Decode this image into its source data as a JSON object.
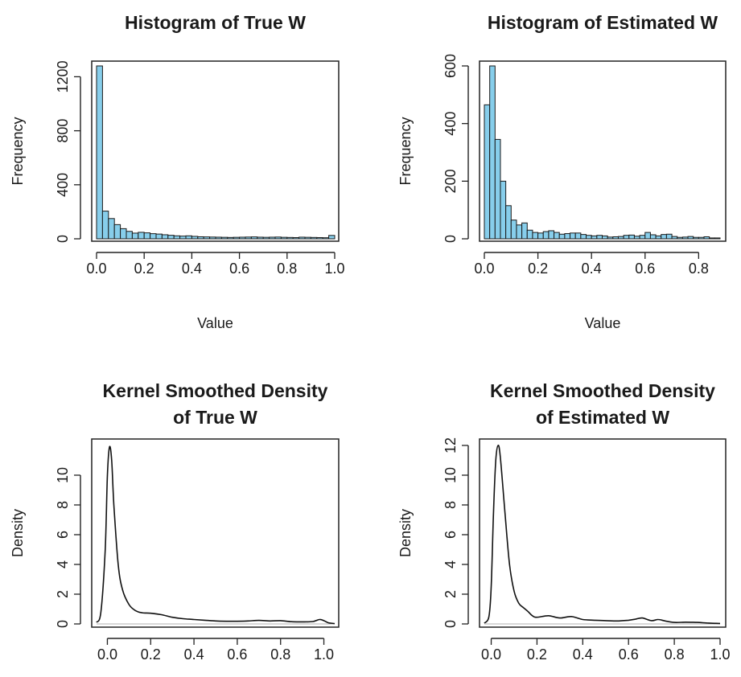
{
  "panels": [
    {
      "title": [
        "Histogram of True W"
      ],
      "xlabel": "Value",
      "ylabel": "Frequency"
    },
    {
      "title": [
        "Histogram of Estimated W"
      ],
      "xlabel": "Value",
      "ylabel": "Frequency"
    },
    {
      "title": [
        "Kernel Smoothed Density",
        "of True W"
      ],
      "xlabel": "",
      "ylabel": "Density"
    },
    {
      "title": [
        "Kernel Smoothed Density",
        "of Estimated W"
      ],
      "xlabel": "",
      "ylabel": "Density"
    }
  ],
  "colors": {
    "bar_fill": "#87CEEB",
    "line": "#111111",
    "frame": "#222222"
  },
  "chart_data": [
    {
      "type": "bar",
      "title": "Histogram of True W",
      "xlabel": "Value",
      "ylabel": "Frequency",
      "bin_width": 0.025,
      "x_start": 0,
      "values": [
        1280,
        205,
        150,
        105,
        75,
        55,
        42,
        48,
        44,
        38,
        35,
        30,
        26,
        22,
        20,
        22,
        18,
        15,
        14,
        13,
        12,
        11,
        10,
        11,
        12,
        13,
        14,
        12,
        11,
        12,
        13,
        11,
        10,
        9,
        12,
        11,
        10,
        9,
        8,
        25
      ],
      "xlim": [
        0,
        1.0
      ],
      "ylim": [
        0,
        1280
      ],
      "xticks": [
        "0.0",
        "0.2",
        "0.4",
        "0.6",
        "0.8",
        "1.0"
      ],
      "xtick_values": [
        0,
        0.2,
        0.4,
        0.6,
        0.8,
        1.0
      ],
      "yticks": [
        "0",
        "400",
        "800",
        "1200"
      ],
      "ytick_values": [
        0,
        400,
        800,
        1200
      ],
      "grid": false,
      "legend": "none"
    },
    {
      "type": "bar",
      "title": "Histogram of Estimated W",
      "xlabel": "Value",
      "ylabel": "Frequency",
      "bin_width": 0.02,
      "x_start": 0,
      "values": [
        465,
        600,
        345,
        200,
        115,
        65,
        48,
        55,
        30,
        22,
        20,
        25,
        28,
        22,
        16,
        18,
        20,
        20,
        15,
        12,
        10,
        12,
        10,
        6,
        7,
        8,
        12,
        13,
        9,
        12,
        22,
        14,
        10,
        15,
        16,
        8,
        5,
        6,
        8,
        5,
        5,
        7,
        3,
        3
      ],
      "xlim": [
        0,
        0.88
      ],
      "ylim": [
        0,
        600
      ],
      "xticks": [
        "0.0",
        "0.2",
        "0.4",
        "0.6",
        "0.8"
      ],
      "xtick_values": [
        0,
        0.2,
        0.4,
        0.6,
        0.8
      ],
      "yticks": [
        "0",
        "200",
        "400",
        "600"
      ],
      "ytick_values": [
        0,
        200,
        400,
        600
      ],
      "grid": false,
      "legend": "none"
    },
    {
      "type": "line",
      "title": "Kernel Smoothed Density of True W",
      "ylabel": "Density",
      "x": [
        -0.05,
        -0.03,
        -0.01,
        0.0,
        0.01,
        0.02,
        0.03,
        0.05,
        0.07,
        0.1,
        0.13,
        0.16,
        0.2,
        0.25,
        0.3,
        0.35,
        0.4,
        0.45,
        0.5,
        0.55,
        0.6,
        0.65,
        0.7,
        0.75,
        0.8,
        0.85,
        0.9,
        0.95,
        0.98,
        1.0,
        1.02,
        1.05
      ],
      "y": [
        0.1,
        0.8,
        5.0,
        10.0,
        11.9,
        11.0,
        8.0,
        4.0,
        2.3,
        1.3,
        0.9,
        0.75,
        0.72,
        0.62,
        0.45,
        0.35,
        0.3,
        0.25,
        0.2,
        0.18,
        0.18,
        0.2,
        0.24,
        0.2,
        0.22,
        0.15,
        0.14,
        0.16,
        0.3,
        0.22,
        0.08,
        0.02
      ],
      "xlim": [
        -0.05,
        1.05
      ],
      "ylim": [
        0,
        12
      ],
      "xticks": [
        "0.0",
        "0.2",
        "0.4",
        "0.6",
        "0.8",
        "1.0"
      ],
      "xtick_values": [
        0,
        0.2,
        0.4,
        0.6,
        0.8,
        1.0
      ],
      "yticks": [
        "0",
        "2",
        "4",
        "6",
        "8",
        "10"
      ],
      "ytick_values": [
        0,
        2,
        4,
        6,
        8,
        10
      ],
      "grid": false,
      "legend": "none"
    },
    {
      "type": "line",
      "title": "Kernel Smoothed Density of Estimated W",
      "ylabel": "Density",
      "x": [
        -0.03,
        -0.01,
        0.0,
        0.01,
        0.02,
        0.03,
        0.04,
        0.06,
        0.08,
        0.1,
        0.12,
        0.14,
        0.16,
        0.18,
        0.2,
        0.25,
        0.3,
        0.35,
        0.4,
        0.45,
        0.5,
        0.55,
        0.6,
        0.63,
        0.66,
        0.7,
        0.73,
        0.76,
        0.8,
        0.85,
        0.9,
        0.95,
        1.0
      ],
      "y": [
        0.05,
        0.5,
        2.5,
        7.5,
        11.0,
        12.0,
        11.2,
        7.5,
        4.0,
        2.2,
        1.4,
        1.1,
        0.85,
        0.55,
        0.45,
        0.55,
        0.4,
        0.5,
        0.3,
        0.25,
        0.22,
        0.2,
        0.25,
        0.32,
        0.4,
        0.22,
        0.3,
        0.2,
        0.1,
        0.12,
        0.1,
        0.06,
        0.03
      ],
      "xlim": [
        -0.03,
        1.0
      ],
      "ylim": [
        0,
        12
      ],
      "xticks": [
        "0.0",
        "0.2",
        "0.4",
        "0.6",
        "0.8",
        "1.0"
      ],
      "xtick_values": [
        0,
        0.2,
        0.4,
        0.6,
        0.8,
        1.0
      ],
      "yticks": [
        "0",
        "2",
        "4",
        "6",
        "8",
        "10",
        "12"
      ],
      "ytick_values": [
        0,
        2,
        4,
        6,
        8,
        10,
        12
      ],
      "grid": false,
      "legend": "none"
    }
  ]
}
